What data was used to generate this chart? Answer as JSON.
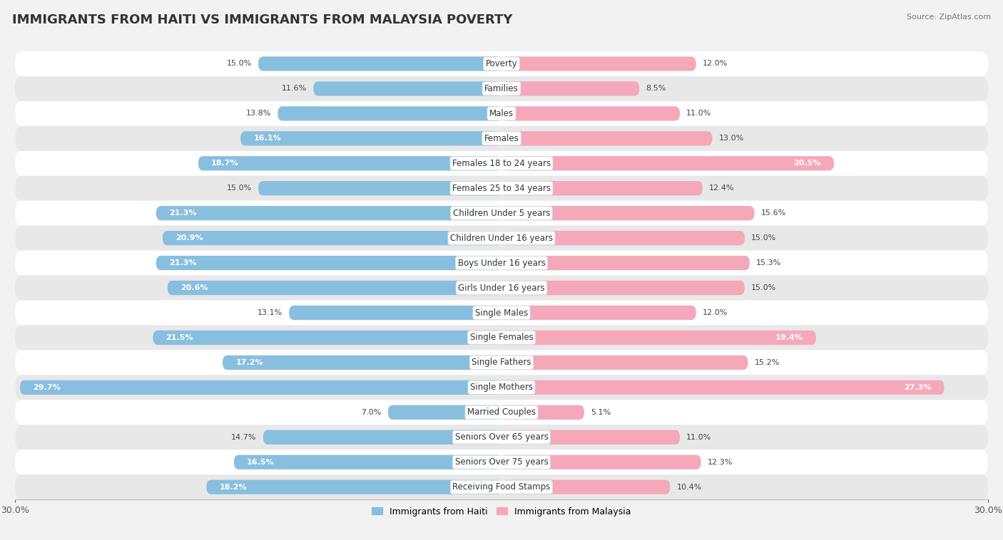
{
  "title": "IMMIGRANTS FROM HAITI VS IMMIGRANTS FROM MALAYSIA POVERTY",
  "source": "Source: ZipAtlas.com",
  "categories": [
    "Poverty",
    "Families",
    "Males",
    "Females",
    "Females 18 to 24 years",
    "Females 25 to 34 years",
    "Children Under 5 years",
    "Children Under 16 years",
    "Boys Under 16 years",
    "Girls Under 16 years",
    "Single Males",
    "Single Females",
    "Single Fathers",
    "Single Mothers",
    "Married Couples",
    "Seniors Over 65 years",
    "Seniors Over 75 years",
    "Receiving Food Stamps"
  ],
  "haiti_values": [
    15.0,
    11.6,
    13.8,
    16.1,
    18.7,
    15.0,
    21.3,
    20.9,
    21.3,
    20.6,
    13.1,
    21.5,
    17.2,
    29.7,
    7.0,
    14.7,
    16.5,
    18.2
  ],
  "malaysia_values": [
    12.0,
    8.5,
    11.0,
    13.0,
    20.5,
    12.4,
    15.6,
    15.0,
    15.3,
    15.0,
    12.0,
    19.4,
    15.2,
    27.3,
    5.1,
    11.0,
    12.3,
    10.4
  ],
  "haiti_color": "#88BFDF",
  "malaysia_color": "#F4A8BA",
  "bar_height": 0.58,
  "xlim": 30.0,
  "background_color": "#f2f2f2",
  "row_light": "#ffffff",
  "row_dark": "#e8e8e8",
  "title_fontsize": 13,
  "label_fontsize": 8.5,
  "value_fontsize": 8.0,
  "value_inside_threshold": 16.0
}
